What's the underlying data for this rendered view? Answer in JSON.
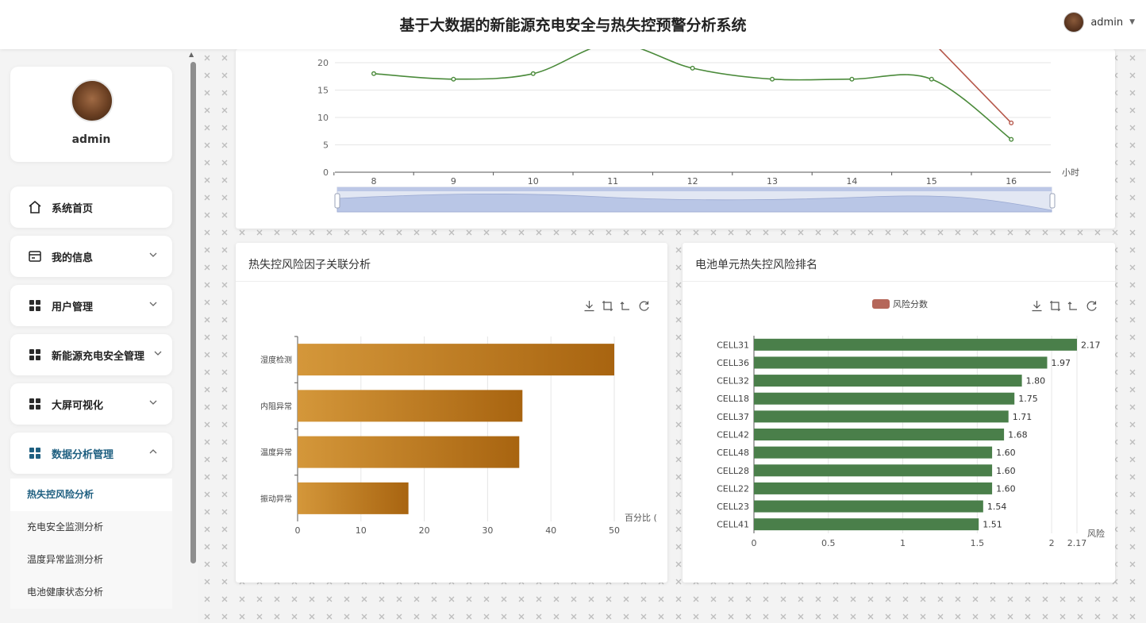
{
  "header": {
    "title": "基于大数据的新能源充电安全与热失控预警分析系统",
    "user": "admin"
  },
  "sidebar": {
    "profile_name": "admin",
    "menu": [
      {
        "label": "系统首页",
        "icon": "home-icon",
        "has_arrow": false
      },
      {
        "label": "我的信息",
        "icon": "id-card-icon",
        "has_arrow": true
      },
      {
        "label": "用户管理",
        "icon": "grid-icon",
        "has_arrow": true
      },
      {
        "label": "新能源充电安全管理",
        "icon": "grid-icon",
        "has_arrow": true
      },
      {
        "label": "大屏可视化",
        "icon": "grid-icon",
        "has_arrow": true
      },
      {
        "label": "数据分析管理",
        "icon": "grid-icon",
        "has_arrow": true,
        "expanded": true
      }
    ],
    "submenu": [
      {
        "label": "热失控风险分析",
        "active": true
      },
      {
        "label": "充电安全监测分析",
        "active": false
      },
      {
        "label": "温度异常监测分析",
        "active": false
      },
      {
        "label": "电池健康状态分析",
        "active": false
      }
    ]
  },
  "top_chart": {
    "xunit": "小时",
    "colors": {
      "green": "#4a8a3a",
      "red": "#b5574a",
      "grid": "#e6e6e6"
    },
    "chart_data": {
      "type": "line",
      "x": [
        8,
        9,
        10,
        11,
        12,
        13,
        14,
        15,
        16
      ],
      "series": [
        {
          "values": [
            18,
            17,
            18,
            23.5,
            19,
            17,
            17,
            17,
            6
          ]
        },
        {
          "values": [
            null,
            null,
            null,
            null,
            null,
            null,
            null,
            24,
            9
          ]
        }
      ],
      "y_ticks": [
        0,
        5,
        10,
        15,
        20
      ],
      "ylim": [
        0,
        25
      ],
      "xlabel": "小时"
    }
  },
  "factor_card": {
    "title": "热失控风险因子关联分析",
    "chart_data": {
      "type": "bar",
      "orientation": "horizontal",
      "categories": [
        "湿度检测",
        "内阻异常",
        "温度异常",
        "振动异常"
      ],
      "values": [
        50,
        35.5,
        35,
        17.5
      ],
      "x_ticks": [
        0,
        10,
        20,
        30,
        40,
        50
      ],
      "xlim": [
        0,
        50
      ],
      "xlabel": "百分比 (",
      "bar_color_start": "#d4973a",
      "bar_color_end": "#a86410"
    }
  },
  "ranking_card": {
    "title": "电池单元热失控风险排名",
    "legend": "风险分数",
    "legend_color": "#b5675a",
    "chart_data": {
      "type": "bar",
      "orientation": "horizontal",
      "categories": [
        "CELL31",
        "CELL36",
        "CELL32",
        "CELL18",
        "CELL37",
        "CELL42",
        "CELL48",
        "CELL28",
        "CELL22",
        "CELL23",
        "CELL41"
      ],
      "values": [
        2.17,
        1.97,
        1.8,
        1.75,
        1.71,
        1.68,
        1.6,
        1.6,
        1.6,
        1.54,
        1.51
      ],
      "labels": [
        "2.17",
        "1.97",
        "1.80",
        "1.75",
        "1.71",
        "1.68",
        "1.60",
        "1.60",
        "1.60",
        "1.54",
        "1.51"
      ],
      "x_ticks": [
        "0",
        "0.5",
        "1",
        "1.5",
        "2",
        "2.17"
      ],
      "xlim": [
        0,
        2.17
      ],
      "xlabel": "风险",
      "bar_color": "#4a7f4a"
    }
  }
}
